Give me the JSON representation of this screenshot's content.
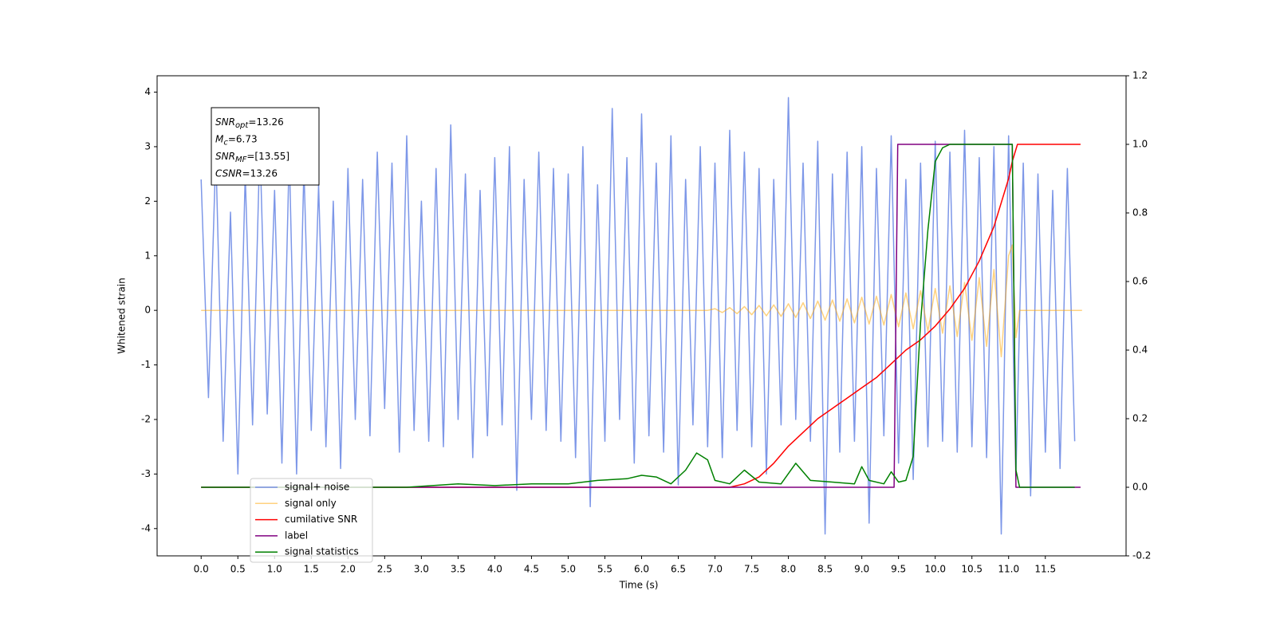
{
  "chart_data": {
    "type": "line",
    "xlabel": "Time (s)",
    "ylabel": "Whitened strain",
    "xlim": [
      -0.6,
      12.6
    ],
    "ylim": [
      -4.5,
      4.3
    ],
    "y2lim": [
      -0.2,
      1.2
    ],
    "xticks": [
      {
        "value": 0,
        "label": "0.0"
      },
      0.5,
      {
        "value": 1,
        "label": "1.0"
      },
      1.5,
      {
        "value": 2,
        "label": "2.0"
      },
      2.5,
      {
        "value": 3,
        "label": "3.0"
      },
      3.5,
      {
        "value": 4,
        "label": "4.0"
      },
      4.5,
      {
        "value": 5,
        "label": "5.0"
      },
      5.5,
      {
        "value": 6,
        "label": "6.0"
      },
      6.5,
      {
        "value": 7,
        "label": "7.0"
      },
      7.5,
      {
        "value": 8,
        "label": "8.0"
      },
      8.5,
      {
        "value": 9,
        "label": "9.0"
      },
      9.5,
      {
        "value": 10,
        "label": "10.0"
      },
      10.5,
      {
        "value": 11,
        "label": "11.0"
      },
      11.5
    ],
    "yticks": [
      -4,
      -3,
      -2,
      -1,
      0,
      1,
      2,
      3,
      4
    ],
    "y2ticks": [
      -0.2,
      {
        "value": 0,
        "label": "0.0"
      },
      0.2,
      0.4,
      0.6,
      0.8,
      {
        "value": 1,
        "label": "1.0"
      },
      1.2
    ],
    "grid": false,
    "legend": "lower left",
    "annotation": [
      {
        "text": "SNR",
        "sub": "opt",
        "value": "=13.26"
      },
      {
        "text": "M",
        "sub": "c",
        "value": "=6.73"
      },
      {
        "text": "SNR",
        "sub": "MF",
        "value": "=[13.55]"
      },
      {
        "text": "CSNR",
        "value": "=13.26"
      }
    ],
    "series": [
      {
        "name": "signal+ noise",
        "color": "#6f8ce6",
        "alpha": 0.9,
        "axis": "y",
        "x": [
          0,
          0.1,
          0.2,
          0.3,
          0.4,
          0.5,
          0.6,
          0.7,
          0.8,
          0.9,
          1,
          1.1,
          1.2,
          1.3,
          1.4,
          1.5,
          1.6,
          1.7,
          1.8,
          1.9,
          2,
          2.1,
          2.2,
          2.3,
          2.4,
          2.5,
          2.6,
          2.7,
          2.8,
          2.9,
          3,
          3.1,
          3.2,
          3.3,
          3.4,
          3.5,
          3.6,
          3.7,
          3.8,
          3.9,
          4,
          4.1,
          4.2,
          4.3,
          4.4,
          4.5,
          4.6,
          4.7,
          4.8,
          4.9,
          5,
          5.1,
          5.2,
          5.3,
          5.4,
          5.5,
          5.6,
          5.7,
          5.8,
          5.9,
          6,
          6.1,
          6.2,
          6.3,
          6.4,
          6.5,
          6.6,
          6.7,
          6.8,
          6.9,
          7,
          7.1,
          7.2,
          7.3,
          7.4,
          7.5,
          7.6,
          7.7,
          7.8,
          7.9,
          8,
          8.1,
          8.2,
          8.3,
          8.4,
          8.5,
          8.6,
          8.7,
          8.8,
          8.9,
          9,
          9.1,
          9.2,
          9.3,
          9.4,
          9.5,
          9.6,
          9.7,
          9.8,
          9.9,
          10,
          10.1,
          10.2,
          10.3,
          10.4,
          10.5,
          10.6,
          10.7,
          10.8,
          10.9,
          11,
          11.1,
          11.2,
          11.3,
          11.4,
          11.5,
          11.6,
          11.7,
          11.8,
          11.9
        ],
        "values": [
          2.4,
          -1.6,
          2.9,
          -2.4,
          1.8,
          -3.0,
          2.5,
          -2.1,
          3.1,
          -1.9,
          2.2,
          -2.8,
          2.9,
          -3.0,
          2.6,
          -2.2,
          2.3,
          -2.5,
          2.0,
          -2.9,
          2.6,
          -2.0,
          2.4,
          -2.3,
          2.9,
          -1.8,
          2.7,
          -2.6,
          3.2,
          -2.2,
          2.0,
          -2.4,
          2.6,
          -2.5,
          3.4,
          -2.0,
          2.5,
          -2.7,
          2.2,
          -2.3,
          2.8,
          -2.1,
          3.0,
          -3.3,
          2.4,
          -2.0,
          2.9,
          -2.2,
          2.6,
          -2.4,
          2.5,
          -2.7,
          3.0,
          -3.6,
          2.3,
          -2.4,
          3.7,
          -2.0,
          2.8,
          -2.8,
          3.6,
          -2.3,
          2.7,
          -2.6,
          3.2,
          -3.2,
          2.4,
          -2.1,
          3.0,
          -2.5,
          2.7,
          -2.7,
          3.3,
          -2.2,
          2.9,
          -2.5,
          2.6,
          -3.0,
          2.4,
          -2.1,
          3.9,
          -2.0,
          2.7,
          -2.4,
          3.1,
          -4.1,
          2.5,
          -2.6,
          2.9,
          -2.4,
          3.0,
          -3.9,
          2.6,
          -2.3,
          3.2,
          -2.8,
          2.4,
          -3.1,
          2.7,
          -2.5,
          3.1,
          -2.4,
          2.9,
          -2.6,
          3.3,
          -2.5,
          2.8,
          -2.7,
          3.0,
          -4.1,
          3.2,
          -3.0,
          2.7,
          -3.4,
          2.5,
          -2.6,
          2.2,
          -2.9,
          2.6,
          -2.4
        ]
      },
      {
        "name": "signal only",
        "color": "#ffa500",
        "alpha": 0.5,
        "axis": "y",
        "x": [
          0,
          6.9,
          7,
          7.1,
          7.2,
          7.3,
          7.4,
          7.5,
          7.6,
          7.7,
          7.8,
          7.9,
          8,
          8.1,
          8.2,
          8.3,
          8.4,
          8.5,
          8.6,
          8.7,
          8.8,
          8.9,
          9,
          9.1,
          9.2,
          9.3,
          9.4,
          9.5,
          9.6,
          9.7,
          9.8,
          9.9,
          10,
          10.1,
          10.2,
          10.3,
          10.4,
          10.5,
          10.6,
          10.7,
          10.8,
          10.9,
          11,
          11.05,
          11.1,
          11.15,
          12
        ],
        "values": [
          0,
          0,
          0.03,
          -0.04,
          0.05,
          -0.06,
          0.07,
          -0.08,
          0.09,
          -0.1,
          0.1,
          -0.11,
          0.12,
          -0.13,
          0.14,
          -0.15,
          0.17,
          -0.18,
          0.19,
          -0.2,
          0.21,
          -0.23,
          0.24,
          -0.25,
          0.26,
          -0.27,
          0.29,
          -0.3,
          0.32,
          -0.34,
          0.36,
          -0.38,
          0.4,
          -0.42,
          0.45,
          -0.48,
          0.51,
          -0.55,
          0.6,
          -0.66,
          0.75,
          -0.85,
          1.0,
          1.2,
          -0.5,
          0,
          0
        ]
      },
      {
        "name": "cumilative SNR",
        "color": "#ff0000",
        "alpha": 1,
        "axis": "y2",
        "x": [
          0,
          7.2,
          7.4,
          7.6,
          7.8,
          8,
          8.2,
          8.4,
          8.6,
          8.8,
          9,
          9.2,
          9.4,
          9.6,
          9.8,
          10,
          10.2,
          10.4,
          10.6,
          10.8,
          10.9,
          11,
          11.05,
          11.12,
          11.98
        ],
        "values": [
          0,
          0,
          0.01,
          0.03,
          0.07,
          0.12,
          0.16,
          0.2,
          0.23,
          0.26,
          0.29,
          0.32,
          0.36,
          0.4,
          0.43,
          0.47,
          0.52,
          0.58,
          0.66,
          0.76,
          0.83,
          0.9,
          0.95,
          1.0,
          1.0
        ]
      },
      {
        "name": "label",
        "color": "#800080",
        "alpha": 1,
        "axis": "y2",
        "x": [
          0,
          9.44,
          9.49,
          11.05,
          11.1,
          11.98
        ],
        "values": [
          0,
          0,
          1,
          1,
          0,
          0
        ]
      },
      {
        "name": "signal statistics",
        "color": "#008000",
        "alpha": 1,
        "axis": "y2",
        "x": [
          0,
          2.8,
          3.5,
          4,
          4.5,
          5,
          5.4,
          5.8,
          6,
          6.2,
          6.4,
          6.6,
          6.75,
          6.9,
          7,
          7.2,
          7.4,
          7.6,
          7.9,
          8.1,
          8.3,
          8.6,
          8.9,
          9,
          9.1,
          9.3,
          9.4,
          9.5,
          9.6,
          9.7,
          9.8,
          9.9,
          10,
          10.1,
          10.2,
          11.05,
          11.1,
          11.15,
          11.9
        ],
        "values": [
          0,
          0,
          0.01,
          0.005,
          0.01,
          0.01,
          0.02,
          0.025,
          0.035,
          0.03,
          0.01,
          0.05,
          0.1,
          0.08,
          0.02,
          0.01,
          0.05,
          0.015,
          0.01,
          0.07,
          0.02,
          0.015,
          0.01,
          0.06,
          0.02,
          0.01,
          0.045,
          0.015,
          0.02,
          0.09,
          0.48,
          0.75,
          0.95,
          0.99,
          1.0,
          1.0,
          0.05,
          0,
          0
        ]
      }
    ]
  }
}
